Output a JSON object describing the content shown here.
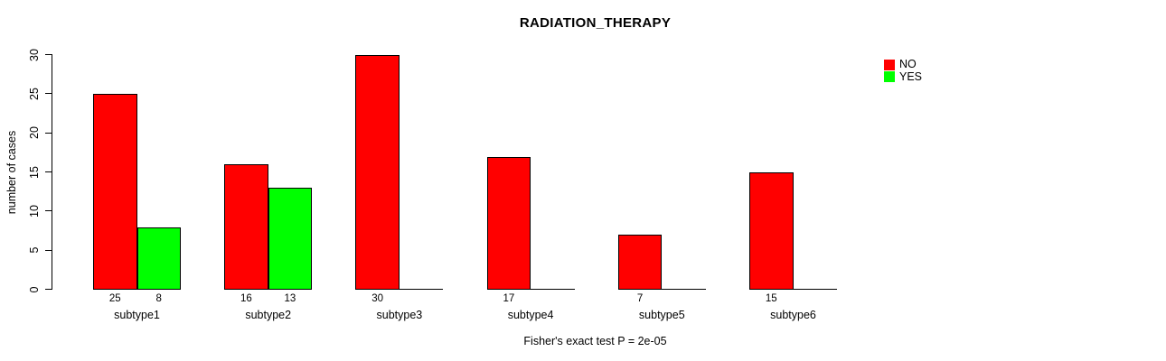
{
  "page": {
    "background_color": "#ffffff"
  },
  "chart_data": {
    "type": "bar",
    "title": "RADIATION_THERAPY",
    "categories": [
      "subtype1",
      "subtype2",
      "subtype3",
      "subtype4",
      "subtype5",
      "subtype6"
    ],
    "series": [
      {
        "name": "NO",
        "color": "#ff0000",
        "values": [
          25,
          16,
          30,
          17,
          7,
          15
        ]
      },
      {
        "name": "YES",
        "color": "#00ff00",
        "values": [
          8,
          13,
          0,
          0,
          0,
          0
        ]
      }
    ],
    "bar_value_labels": [
      [
        "25",
        "16",
        "30",
        "17",
        "7",
        "15"
      ],
      [
        "8",
        "13",
        "",
        "",
        "",
        ""
      ]
    ],
    "xlabel": "",
    "ylabel": "number of cases",
    "ylim": [
      0,
      30
    ],
    "yticks": [
      0,
      5,
      10,
      15,
      20,
      25,
      30
    ],
    "grid": false,
    "bar_border_color": "#000000",
    "legend_position": "top-right",
    "annotation": "Fisher's exact test P = 2e-05"
  }
}
